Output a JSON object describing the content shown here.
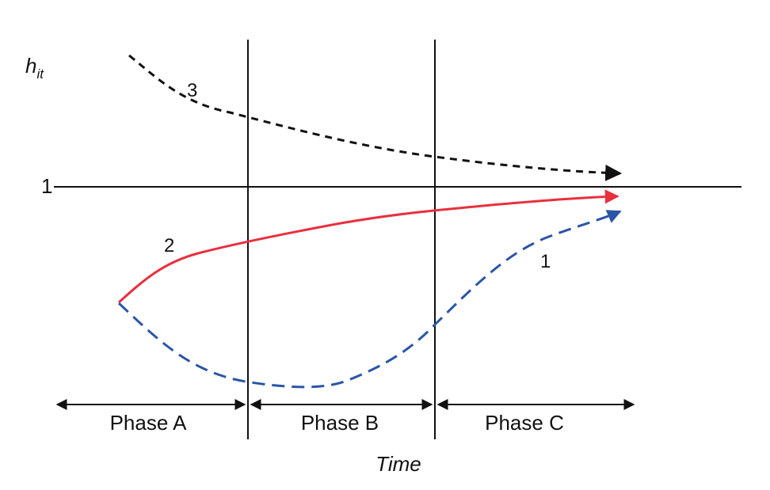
{
  "y_axis": {
    "label_main": "h",
    "label_sub": "it",
    "reference_label": "1"
  },
  "x_axis": {
    "label": "Time"
  },
  "phases": [
    {
      "label": "Phase A"
    },
    {
      "label": "Phase B"
    },
    {
      "label": "Phase C"
    }
  ],
  "curves": [
    {
      "label": "3",
      "style": "dashed",
      "color": "#111111"
    },
    {
      "label": "2",
      "style": "solid",
      "color": "#e8303f"
    },
    {
      "label": "1",
      "style": "dashed",
      "color": "#2b55a6"
    }
  ]
}
